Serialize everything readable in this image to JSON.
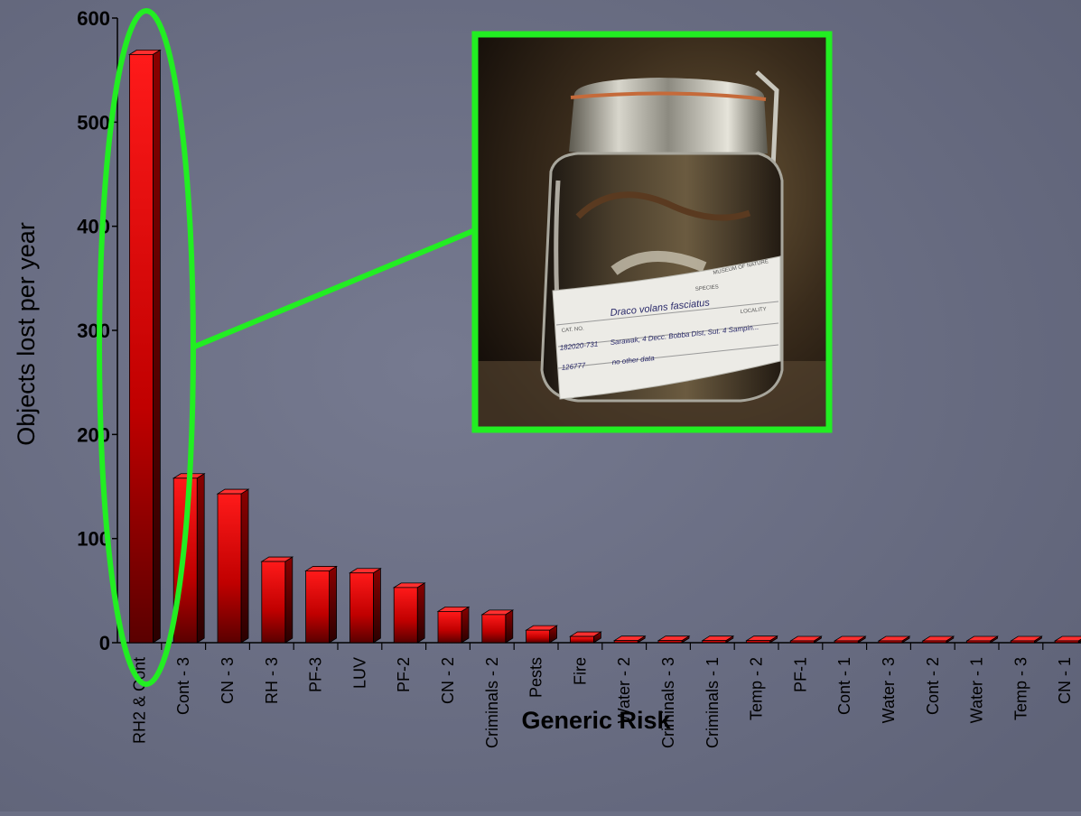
{
  "chart_data": {
    "type": "bar",
    "title": "",
    "xlabel": "Generic Risk",
    "ylabel": "Objects lost per year",
    "ylim": [
      0,
      600
    ],
    "yticks": [
      "0",
      "100",
      "200",
      "300",
      "400",
      "500",
      "600"
    ],
    "categories": [
      "RH2 & Cont",
      "Cont - 3",
      "CN - 3",
      "RH - 3",
      "PF-3",
      "LUV",
      "PF-2",
      "CN - 2",
      "Criminals - 2",
      "Pests",
      "Fire",
      "Water - 2",
      "Criminals - 3",
      "Criminals - 1",
      "Temp - 2",
      "PF-1",
      "Cont - 1",
      "Water - 3",
      "Cont - 2",
      "Water - 1",
      "Temp - 3",
      "CN - 1"
    ],
    "values": [
      565,
      158,
      143,
      78,
      69,
      67,
      53,
      30,
      27,
      12,
      6,
      2,
      2,
      2,
      2,
      1,
      1,
      1,
      1,
      1,
      1,
      1
    ],
    "grid": false,
    "bar_color": "#e00000",
    "highlight_color": "#22ee22",
    "highlighted_category": "RH2 & Cont"
  },
  "inset_photo": {
    "specimen_label": "Draco volans fasciatus",
    "species_caption": "SPECIES",
    "locality_caption": "LOCALITY",
    "catalog_caption": "CAT. NO.",
    "catalog_numbers": [
      "182020-731",
      "126777"
    ],
    "locality_text": "Sarawak, 4 Decc. Bobba Dist, Sut. 4 Sampin...",
    "notes_text": "no other data",
    "museum_text": "MUSEUM OF NATURE"
  }
}
